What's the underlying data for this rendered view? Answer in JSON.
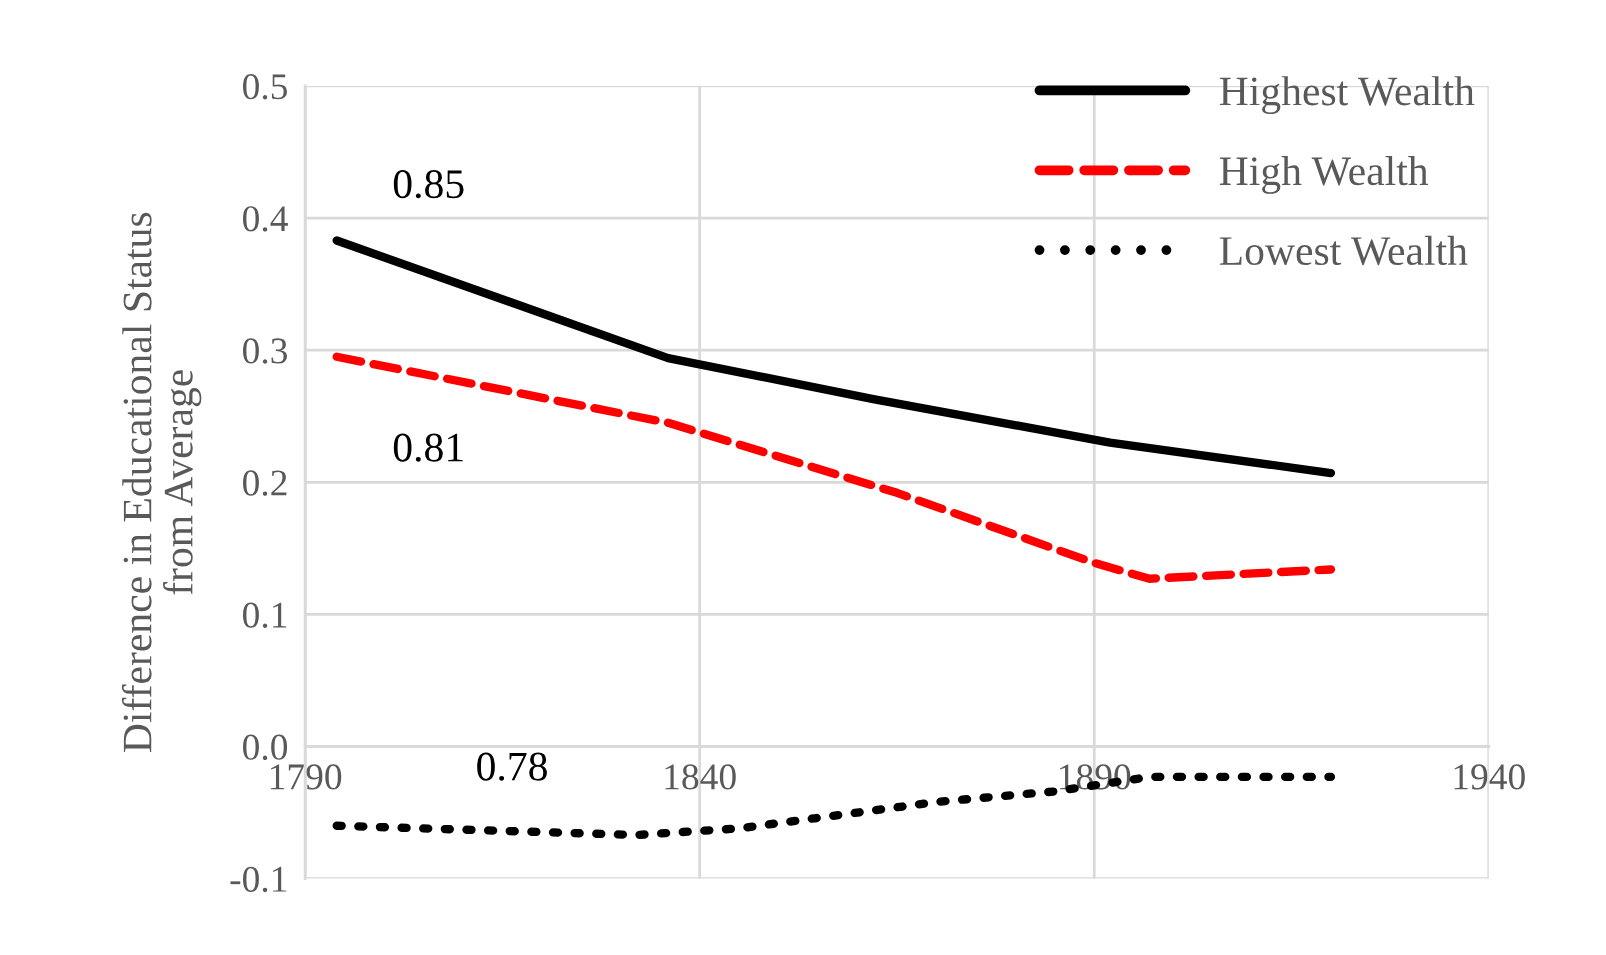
{
  "chart_data": {
    "type": "line",
    "ylabel": "Difference in Educational Status\nfrom Average",
    "xlim": [
      1790,
      1940
    ],
    "xticks": [
      1790,
      1840,
      1890,
      1940
    ],
    "ylim": [
      -0.1,
      0.5
    ],
    "yticks": [
      -0.1,
      {
        "value": 0,
        "label": "0.0"
      },
      0.1,
      0.2,
      0.3,
      0.4,
      0.5
    ],
    "grid": true,
    "legend": "top right",
    "series": [
      {
        "name": "Highest Wealth",
        "color": "#000000",
        "line_style": "solid",
        "x": [
          1794,
          1836,
          1862,
          1892,
          1920
        ],
        "values": [
          0.383,
          0.294,
          0.263,
          0.23,
          0.207
        ]
      },
      {
        "name": "High Wealth",
        "color": "#ff0000",
        "line_style": "dashed",
        "x": [
          1794,
          1836,
          1865,
          1890,
          1897,
          1920
        ],
        "values": [
          0.295,
          0.245,
          0.192,
          0.139,
          0.127,
          0.134
        ]
      },
      {
        "name": "Lowest Wealth",
        "color": "#000000",
        "line_style": "dotted",
        "x": [
          1794,
          1832,
          1845,
          1870,
          1885,
          1897,
          1920
        ],
        "values": [
          -0.06,
          -0.067,
          -0.062,
          -0.042,
          -0.034,
          -0.023,
          -0.023
        ]
      }
    ],
    "annotations": [
      "0.85",
      "0.81",
      "0.78"
    ]
  }
}
